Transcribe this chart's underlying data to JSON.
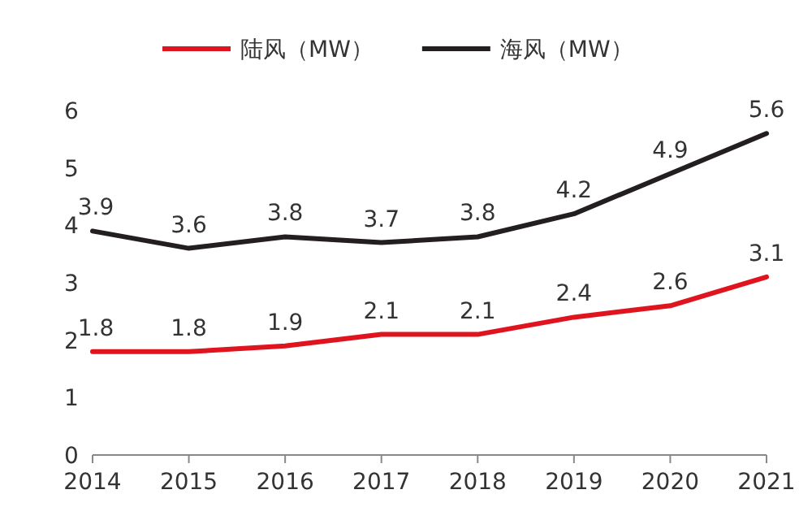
{
  "chart_data": {
    "type": "line",
    "categories": [
      "2014",
      "2015",
      "2016",
      "2017",
      "2018",
      "2019",
      "2020",
      "2021"
    ],
    "series": [
      {
        "name": "陆风（MW）",
        "color": "#e0141e",
        "values": [
          1.8,
          1.8,
          1.9,
          2.1,
          2.1,
          2.4,
          2.6,
          3.1
        ]
      },
      {
        "name": "海风（MW）",
        "color": "#231f20",
        "values": [
          3.9,
          3.6,
          3.8,
          3.7,
          3.8,
          4.2,
          4.9,
          5.6
        ]
      }
    ],
    "ylim": [
      0,
      6
    ],
    "yticks": [
      0,
      1,
      2,
      3,
      4,
      5,
      6
    ],
    "grid": false,
    "legend": "top",
    "data_labels": true
  }
}
